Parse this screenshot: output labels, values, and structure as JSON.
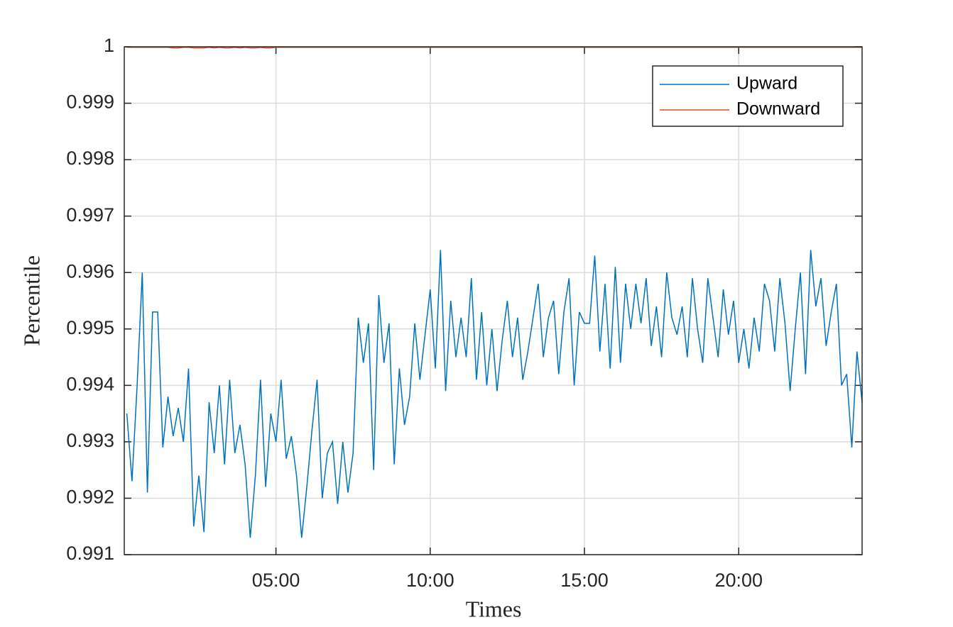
{
  "chart_data": {
    "type": "line",
    "xlabel": "Times",
    "ylabel": "Percentile",
    "x": [
      10,
      20,
      30,
      40,
      50,
      60,
      70,
      80,
      90,
      100,
      110,
      120,
      130,
      140,
      150,
      160,
      170,
      180,
      190,
      200,
      210,
      220,
      230,
      240,
      250,
      260,
      270,
      280,
      290,
      300,
      310,
      320,
      330,
      340,
      350,
      360,
      370,
      380,
      390,
      400,
      410,
      420,
      430,
      440,
      450,
      460,
      470,
      480,
      490,
      500,
      510,
      520,
      530,
      540,
      550,
      560,
      570,
      580,
      590,
      600,
      610,
      620,
      630,
      640,
      650,
      660,
      670,
      680,
      690,
      700,
      710,
      720,
      730,
      740,
      750,
      760,
      770,
      780,
      790,
      800,
      810,
      820,
      830,
      840,
      850,
      860,
      870,
      880,
      890,
      900,
      910,
      920,
      930,
      940,
      950,
      960,
      970,
      980,
      990,
      1000,
      1010,
      1020,
      1030,
      1040,
      1050,
      1060,
      1070,
      1080,
      1090,
      1100,
      1110,
      1120,
      1130,
      1140,
      1150,
      1160,
      1170,
      1180,
      1190,
      1200,
      1210,
      1220,
      1230,
      1240,
      1250,
      1260,
      1270,
      1280,
      1290,
      1300,
      1310,
      1320,
      1330,
      1340,
      1350,
      1360,
      1370,
      1380,
      1390,
      1400,
      1410,
      1420,
      1430,
      1440
    ],
    "series": [
      {
        "name": "Upward",
        "color": "#0072BD",
        "values": [
          0.9935,
          0.9923,
          0.994,
          0.996,
          0.9921,
          0.9953,
          0.9953,
          0.9929,
          0.9938,
          0.9931,
          0.9936,
          0.993,
          0.9943,
          0.9915,
          0.9924,
          0.9914,
          0.9937,
          0.9928,
          0.994,
          0.9926,
          0.9941,
          0.9928,
          0.9933,
          0.9926,
          0.9913,
          0.9924,
          0.9941,
          0.9922,
          0.9935,
          0.993,
          0.9941,
          0.9927,
          0.9931,
          0.9924,
          0.9913,
          0.9922,
          0.9932,
          0.9941,
          0.992,
          0.9928,
          0.993,
          0.9919,
          0.993,
          0.9921,
          0.9928,
          0.9952,
          0.9944,
          0.9951,
          0.9925,
          0.9956,
          0.9944,
          0.9951,
          0.9926,
          0.9943,
          0.9933,
          0.9938,
          0.9951,
          0.9941,
          0.9949,
          0.9957,
          0.9943,
          0.9964,
          0.9939,
          0.9955,
          0.9945,
          0.9952,
          0.9945,
          0.9959,
          0.9941,
          0.9953,
          0.994,
          0.995,
          0.9939,
          0.9948,
          0.9955,
          0.9945,
          0.9952,
          0.9941,
          0.9946,
          0.9952,
          0.9958,
          0.9945,
          0.9952,
          0.9955,
          0.9942,
          0.9953,
          0.9959,
          0.994,
          0.9953,
          0.9951,
          0.9951,
          0.9963,
          0.9946,
          0.9958,
          0.9943,
          0.9961,
          0.9944,
          0.9958,
          0.995,
          0.9958,
          0.9951,
          0.9959,
          0.9947,
          0.9954,
          0.9945,
          0.996,
          0.9952,
          0.9949,
          0.9954,
          0.9945,
          0.9959,
          0.995,
          0.9944,
          0.9959,
          0.9952,
          0.9945,
          0.9957,
          0.9949,
          0.9955,
          0.9944,
          0.995,
          0.9943,
          0.9952,
          0.9946,
          0.9958,
          0.9955,
          0.9946,
          0.9959,
          0.9951,
          0.9939,
          0.995,
          0.996,
          0.9942,
          0.9964,
          0.9954,
          0.9959,
          0.9947,
          0.9953,
          0.9958,
          0.994,
          0.9942,
          0.9929,
          0.9946,
          0.9937
        ]
      },
      {
        "name": "Downward",
        "color": "#D95319",
        "values": [
          0.99999,
          0.99999,
          0.99999,
          0.99999,
          0.99999,
          0.99999,
          0.99999,
          0.99999,
          0.99999,
          0.99998,
          0.99998,
          0.99999,
          0.99999,
          0.99998,
          0.99998,
          0.99998,
          0.99999,
          0.99998,
          0.99999,
          0.99998,
          0.99998,
          0.99999,
          0.99998,
          0.99999,
          0.99998,
          0.99998,
          0.99999,
          0.99998,
          0.99998,
          0.99999,
          0.99999,
          0.99999,
          0.99999,
          0.99999,
          0.99999,
          0.99999,
          0.99999,
          0.99999,
          0.99999,
          0.99999,
          0.99999,
          0.99999,
          0.99999,
          0.99999,
          0.99999,
          0.99999,
          0.99999,
          0.99999,
          0.99999,
          0.99999,
          0.99999,
          0.99999,
          0.99999,
          0.99999,
          0.99999,
          0.99999,
          0.99999,
          0.99999,
          0.99999,
          0.99999,
          0.99999,
          0.99999,
          0.99999,
          0.99999,
          0.99999,
          0.99999,
          0.99999,
          0.99999,
          0.99999,
          0.99999,
          0.99999,
          0.99999,
          0.99999,
          0.99999,
          0.99999,
          0.99999,
          0.99999,
          0.99999,
          0.99999,
          0.99999,
          0.99999,
          0.99999,
          0.99999,
          0.99999,
          0.99999,
          0.99999,
          0.99999,
          0.99999,
          0.99999,
          0.99999,
          0.99999,
          0.99999,
          0.99999,
          0.99999,
          0.99999,
          0.99999,
          0.99999,
          0.99999,
          0.99999,
          0.99999,
          0.99999,
          0.99999,
          0.99999,
          0.99999,
          0.99999,
          0.99999,
          0.99999,
          0.99999,
          0.99999,
          0.99999,
          0.99999,
          0.99999,
          0.99999,
          0.99999,
          0.99999,
          0.99999,
          0.99999,
          0.99999,
          0.99999,
          0.99999,
          0.99999,
          0.99999,
          0.99999,
          0.99999,
          0.99999,
          0.99999,
          0.99999,
          0.99999,
          0.99999,
          0.99999,
          0.99999,
          0.99999,
          0.99999,
          0.99999,
          0.99999,
          0.99999,
          0.99999,
          0.99999,
          0.99999,
          0.99999,
          0.99999,
          0.99999,
          0.99999,
          0.99999
        ]
      }
    ],
    "xlim": [
      5,
      1440
    ],
    "xticks": [
      {
        "value": 300,
        "label": "05:00"
      },
      {
        "value": 600,
        "label": "10:00"
      },
      {
        "value": 900,
        "label": "15:00"
      },
      {
        "value": 1200,
        "label": "20:00"
      }
    ],
    "ylim": [
      0.991,
      1
    ],
    "yticks": [
      0.991,
      0.992,
      0.993,
      0.994,
      0.995,
      0.996,
      0.997,
      0.998,
      0.999,
      1
    ],
    "grid": true,
    "legend": "upper-right"
  }
}
